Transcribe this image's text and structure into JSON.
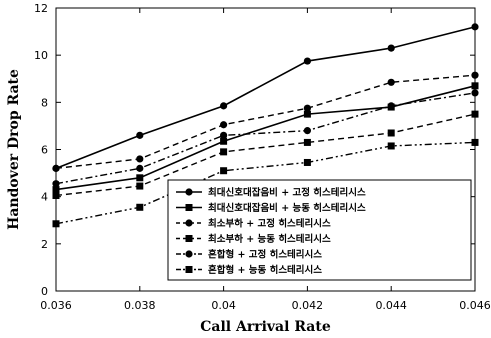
{
  "chart_data": {
    "type": "line",
    "title": "",
    "xlabel": "Call Arrival Rate",
    "ylabel": "Handover Drop Rate",
    "x": [
      0.036,
      0.038,
      0.04,
      0.042,
      0.044,
      0.046
    ],
    "x_tick_labels": [
      "0.036",
      "0.038",
      "0.04",
      "0.042",
      "0.044",
      "0.046"
    ],
    "xlim": [
      0.036,
      0.046
    ],
    "ylim": [
      0,
      12
    ],
    "y_ticks": [
      0,
      2,
      4,
      6,
      8,
      10,
      12
    ],
    "y_tick_labels": [
      "0",
      "2",
      "4",
      "6",
      "8",
      "10",
      "12"
    ],
    "grid": false,
    "legend_position": "lower-right",
    "series": [
      {
        "name": "최대신호대잡음비 + 고정 히스테리시스",
        "marker": "circle",
        "line": "solid",
        "values": [
          5.2,
          6.6,
          7.85,
          9.75,
          10.3,
          11.2
        ]
      },
      {
        "name": "최대신호대잡음비 + 능동 히스테리시스",
        "marker": "square",
        "line": "solid",
        "values": [
          4.3,
          4.8,
          6.35,
          7.5,
          7.8,
          8.7
        ]
      },
      {
        "name": "최소부하 + 고정 히스테리시스",
        "marker": "circle",
        "line": "dashed",
        "values": [
          5.2,
          5.6,
          7.05,
          7.75,
          8.85,
          9.15
        ]
      },
      {
        "name": "최소부하 + 능동 히스테리시스",
        "marker": "square",
        "line": "dashed",
        "values": [
          4.05,
          4.45,
          5.9,
          6.3,
          6.7,
          7.5
        ]
      },
      {
        "name": "혼합형 + 고정 히스테리시스",
        "marker": "circle",
        "line": "dashdot",
        "values": [
          4.55,
          5.2,
          6.6,
          6.8,
          7.85,
          8.4
        ]
      },
      {
        "name": "혼합형 + 능동 히스테리시스",
        "marker": "square",
        "line": "dashdotdot",
        "values": [
          2.85,
          3.55,
          5.1,
          5.45,
          6.15,
          6.3
        ]
      }
    ]
  }
}
